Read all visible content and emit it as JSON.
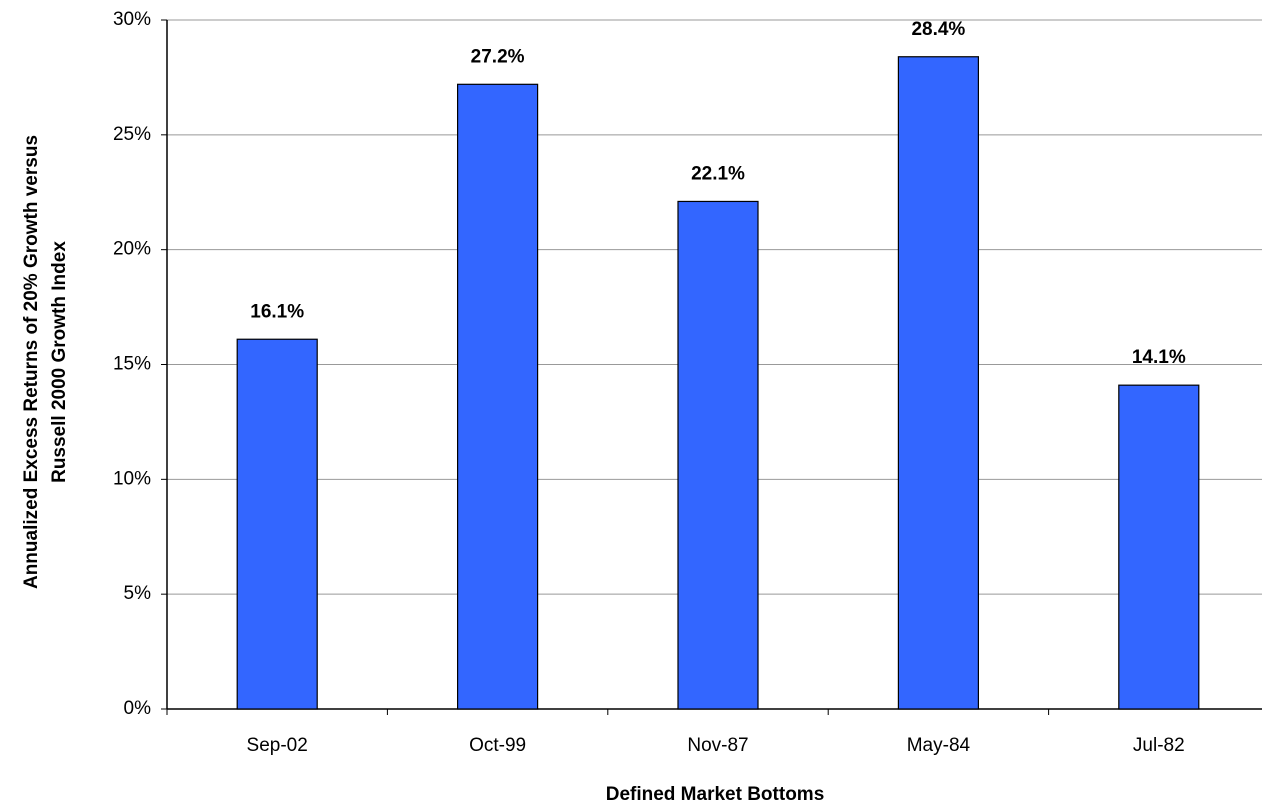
{
  "chart_data": {
    "type": "bar",
    "x_label": "Defined Market Bottoms",
    "y_label": [
      "Annualized Excess Returns of 20% Growth versus",
      "Russell 2000 Growth Index"
    ],
    "categories": [
      "Sep-02",
      "Oct-99",
      "Nov-87",
      "May-84",
      "Jul-82"
    ],
    "values": [
      16.1,
      27.2,
      22.1,
      28.4,
      14.1
    ],
    "value_labels": [
      "16.1%",
      "27.2%",
      "22.1%",
      "28.4%",
      "14.1%"
    ],
    "color": "#3366ff",
    "ylim": [
      0,
      30
    ],
    "yticks": [
      {
        "value": 0,
        "label": "0%"
      },
      {
        "value": 5,
        "label": "5%"
      },
      {
        "value": 10,
        "label": "10%"
      },
      {
        "value": 15,
        "label": "15%"
      },
      {
        "value": 20,
        "label": "20%"
      },
      {
        "value": 25,
        "label": "25%"
      },
      {
        "value": 30,
        "label": "30%"
      }
    ],
    "grid": true
  }
}
